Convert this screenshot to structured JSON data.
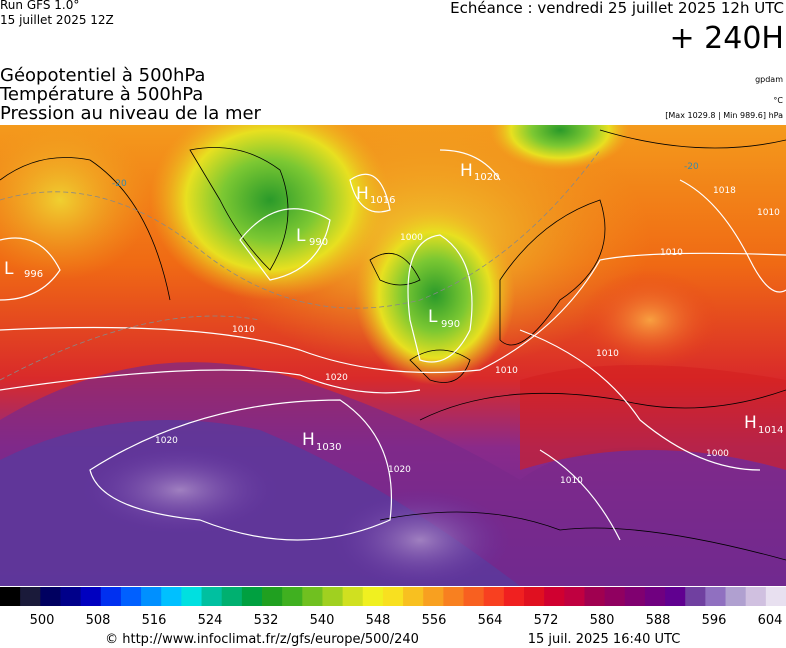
{
  "header": {
    "run": "Run GFS 1.0°",
    "run_date": "15 juillet 2025 12Z",
    "echeance": "Echéance : vendredi 25 juillet 2025 12h UTC",
    "lead": "+ 240H"
  },
  "titles": [
    "Géopotentiel à 500hPa",
    "Température à 500hPa",
    "Pression au niveau de la mer"
  ],
  "units": {
    "geopotential": "gpdam",
    "temperature": "°C",
    "pressure": "[Max 1029.8 | Min 989.6] hPa"
  },
  "map": {
    "centers": [
      {
        "letter": "H",
        "value": "1030"
      },
      {
        "letter": "L",
        "value": "990"
      },
      {
        "letter": "L",
        "value": "990"
      },
      {
        "letter": "H",
        "value": "1016"
      },
      {
        "letter": "H",
        "value": "1020"
      },
      {
        "letter": "H",
        "value": "1014"
      },
      {
        "letter": "L",
        "value": "996"
      }
    ],
    "isobar_labels": [
      "1010",
      "1020",
      "1020",
      "1010",
      "1010",
      "1000",
      "1010",
      "1010",
      "1020",
      "1000",
      "1010",
      "1018"
    ],
    "temperature_labels": [
      "-20",
      "-20"
    ]
  },
  "colorbar": {
    "ticks": [
      "500",
      "508",
      "516",
      "524",
      "532",
      "540",
      "548",
      "556",
      "564",
      "572",
      "580",
      "588",
      "596",
      "604"
    ]
  },
  "footer": {
    "source": "© http://www.infoclimat.fr/z/gfs/europe/500/240",
    "generated": "15 juil. 2025 16:40 UTC"
  }
}
